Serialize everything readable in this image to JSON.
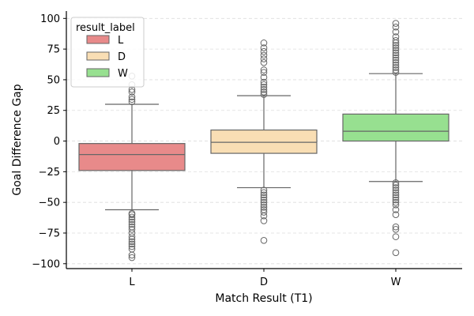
{
  "chart_data": {
    "type": "box",
    "xlabel": "Match Result (T1)",
    "ylabel": "Goal Difference Gap",
    "ylim": [
      -104,
      106
    ],
    "yticks": [
      -100,
      -75,
      -50,
      -25,
      0,
      25,
      50,
      75,
      100
    ],
    "grid": "horizontal dashed",
    "legend": {
      "title": "result_label",
      "placement": "top-left",
      "entries": [
        "L",
        "D",
        "W"
      ]
    },
    "categories": [
      "L",
      "D",
      "W"
    ],
    "series": [
      {
        "name": "L",
        "color": "#e88a8a",
        "whisker_low": -56,
        "q1": -24,
        "median": -11,
        "q3": -2,
        "whisker_high": 30,
        "outliers": [
          32,
          34,
          36,
          40,
          42,
          46,
          53,
          -59,
          -60,
          -62,
          -64,
          -66,
          -68,
          -70,
          -72,
          -75,
          -78,
          -80,
          -82,
          -84,
          -86,
          -88,
          -93,
          -95
        ]
      },
      {
        "name": "D",
        "color": "#f9deb4",
        "whisker_low": -38,
        "q1": -10,
        "median": -1,
        "q3": 9,
        "whisker_high": 37,
        "outliers": [
          38,
          40,
          42,
          44,
          46,
          48,
          52,
          56,
          58,
          64,
          67,
          70,
          73,
          76,
          80,
          -40,
          -42,
          -44,
          -46,
          -48,
          -50,
          -52,
          -54,
          -56,
          -58,
          -61,
          -65,
          -81
        ]
      },
      {
        "name": "W",
        "color": "#97e090",
        "whisker_low": -33,
        "q1": 0,
        "median": 8,
        "q3": 22,
        "whisker_high": 55,
        "outliers": [
          56,
          58,
          60,
          62,
          64,
          66,
          68,
          70,
          72,
          74,
          76,
          78,
          80,
          82,
          85,
          89,
          93,
          96,
          -34,
          -36,
          -38,
          -40,
          -42,
          -44,
          -46,
          -48,
          -50,
          -52,
          -56,
          -60,
          -70,
          -72,
          -78,
          -91
        ]
      }
    ]
  }
}
